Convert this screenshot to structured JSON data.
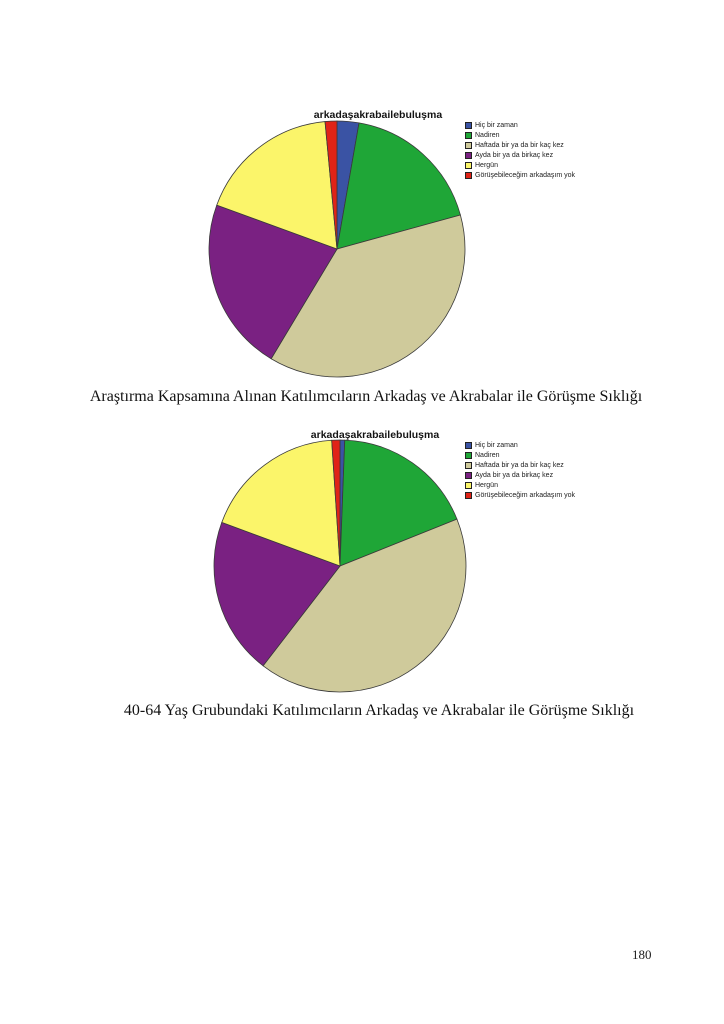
{
  "page_number": "180",
  "captions": [
    "Araştırma Kapsamına Alınan Katılımcıların Arkadaş ve Akrabalar ile Görüşme Sıklığı",
    "40-64 Yaş Grubundaki Katılımcıların Arkadaş ve Akrabalar ile Görüşme Sıklığı"
  ],
  "chart_data": [
    {
      "type": "pie",
      "title": "arkadaşakrabailebuluşma",
      "legend_position": "right",
      "start_angle_deg": 0,
      "direction": "clockwise",
      "slices": [
        {
          "label": "Hiç bir zaman",
          "value": 2.75,
          "color": "#3a53a4",
          "pct_label": ""
        },
        {
          "label": "Nadiren",
          "value": 17.97,
          "color": "#1fa637",
          "pct_label": "17.97%"
        },
        {
          "label": "Haftada bir ya da bir kaç kez",
          "value": 37.88,
          "color": "#cfca9b",
          "pct_label": "37.88%"
        },
        {
          "label": "Ayda bir ya da birkaç kez",
          "value": 21.97,
          "color": "#7a2182",
          "pct_label": "21.97%"
        },
        {
          "label": "Hergün",
          "value": 17.94,
          "color": "#fbf56a",
          "pct_label": "17.94%"
        },
        {
          "label": "Görüşebileceğim arkadaşım yok",
          "value": 1.49,
          "color": "#e02317",
          "pct_label": "1.49%"
        }
      ]
    },
    {
      "type": "pie",
      "title": "arkadaşakrabailebuluşma",
      "legend_position": "right",
      "start_angle_deg": 0,
      "direction": "clockwise",
      "slices": [
        {
          "label": "Hiç bir zaman",
          "value": 0.6,
          "color": "#3a53a4",
          "pct_label": ""
        },
        {
          "label": "Nadiren",
          "value": 18.33,
          "color": "#1fa637",
          "pct_label": "18.33%"
        },
        {
          "label": "Haftada bir ya da bir kaç kez",
          "value": 41.52,
          "color": "#cfca9b",
          "pct_label": "41.52%"
        },
        {
          "label": "Ayda bir ya da birkaç kez",
          "value": 20.17,
          "color": "#7a2182",
          "pct_label": "20.17%"
        },
        {
          "label": "Hergün",
          "value": 18.33,
          "color": "#fbf56a",
          "pct_label": "18.33%"
        },
        {
          "label": "Görüşebileceğim arkadaşım yok",
          "value": 1.05,
          "color": "#e02317",
          "pct_label": "1.05%"
        }
      ]
    }
  ]
}
